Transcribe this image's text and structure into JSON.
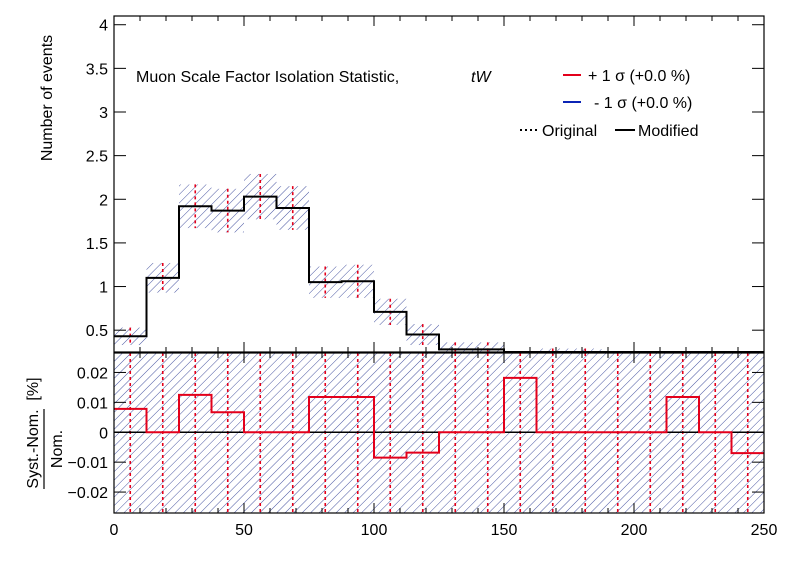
{
  "chart_data": [
    {
      "type": "histogram",
      "panel": "main",
      "title": "Muon Scale Factor Isolation Statistic,",
      "title_process": "tW",
      "ylabel": "Number of events",
      "xlim": [
        0,
        250
      ],
      "ylim": [
        0.25,
        4.1
      ],
      "yticks": [
        0.5,
        1,
        1.5,
        2,
        2.5,
        3,
        3.5,
        4
      ],
      "ytick_labels": [
        "0.5",
        "1",
        "1.5",
        "2",
        "2.5",
        "3",
        "3.5",
        "4"
      ],
      "bin_edges": [
        0,
        12.5,
        25,
        37.5,
        50,
        62.5,
        75,
        87.5,
        100,
        112.5,
        125,
        137.5,
        150,
        162.5,
        175,
        187.5,
        200,
        212.5,
        225,
        237.5,
        250
      ],
      "series": [
        {
          "name": "Modified",
          "values": [
            0.43,
            1.1,
            1.92,
            1.87,
            2.03,
            1.9,
            1.05,
            1.06,
            0.71,
            0.45,
            0.28,
            0.28,
            0.1,
            0.22,
            0.22,
            0.09,
            0.06,
            0.08,
            0.0,
            0.12
          ]
        }
      ],
      "uncertainty_halfwidth": [
        0.1,
        0.17,
        0.25,
        0.25,
        0.26,
        0.25,
        0.18,
        0.19,
        0.15,
        0.12,
        0.08,
        0.08,
        0.06,
        0.07,
        0.07,
        0.05,
        0.04,
        0.05,
        0.0,
        0.05
      ],
      "legend": {
        "placement": "top-right",
        "entries": [
          {
            "label": "+ 1 σ (+0.0 %)",
            "color": "#e3001b",
            "style": "solid"
          },
          {
            "label": "- 1 σ (+0.0 %)",
            "color": "#0b24b5",
            "style": "solid"
          },
          {
            "label": "Original",
            "color": "#000000",
            "style": "dotted"
          },
          {
            "label": "Modified",
            "color": "#000000",
            "style": "solid"
          }
        ]
      }
    },
    {
      "type": "histogram",
      "panel": "ratio",
      "ylabel_numerator": "Syst.-Nom.",
      "ylabel_denominator": "Nom.",
      "ylabel_unit": "[%]",
      "xlim": [
        0,
        250
      ],
      "ylim": [
        -0.027,
        0.0265
      ],
      "xticks": [
        0,
        50,
        100,
        150,
        200,
        250
      ],
      "xtick_labels": [
        "0",
        "50",
        "100",
        "150",
        "200",
        "250"
      ],
      "yticks": [
        -0.02,
        -0.01,
        0,
        0.01,
        0.02
      ],
      "ytick_labels": [
        "−0.02",
        "−0.01",
        "0",
        "0.01",
        "0.02"
      ],
      "bin_edges": [
        0,
        12.5,
        25,
        37.5,
        50,
        62.5,
        75,
        87.5,
        100,
        112.5,
        125,
        137.5,
        150,
        162.5,
        175,
        187.5,
        200,
        212.5,
        225,
        237.5,
        250
      ],
      "series": [
        {
          "name": "+ 1 σ (+0.0 %)",
          "values": [
            0.0078,
            0,
            0.0125,
            0.0067,
            0,
            0,
            0.0118,
            0.0118,
            -0.0085,
            -0.0068,
            0,
            0,
            0.0182,
            0,
            0,
            0,
            0,
            0.0118,
            0,
            -0.007
          ]
        }
      ]
    }
  ],
  "colors": {
    "up": "#e3001b",
    "down": "#0b24b5",
    "hatch": "#1a2a8a",
    "axes": "#000000"
  }
}
